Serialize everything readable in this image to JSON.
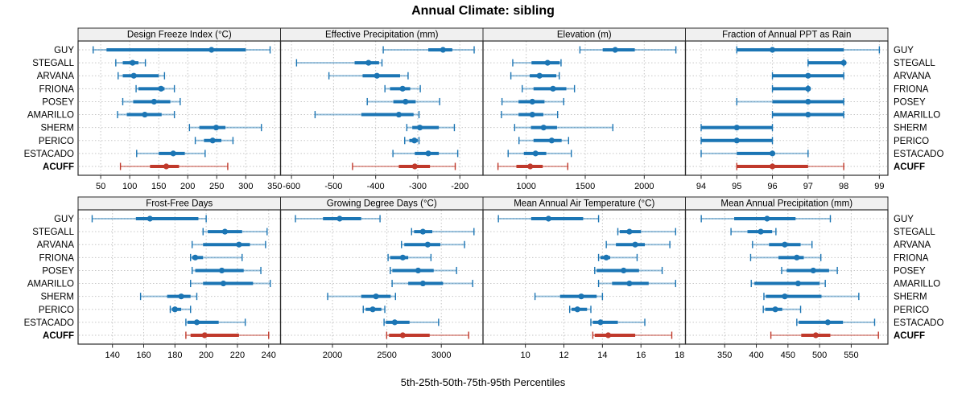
{
  "chart_data": {
    "type": "trellis-percentile-dotplot",
    "title": "Annual Climate: sibling",
    "footer": "5th-25th-50th-75th-95th Percentiles",
    "percentile_labels": [
      "5th",
      "25th",
      "50th",
      "75th",
      "95th"
    ],
    "stations": [
      "GUY",
      "STEGALL",
      "ARVANA",
      "FRIONA",
      "POSEY",
      "AMARILLO",
      "SHERM",
      "PERICO",
      "ESTACADO",
      "ACUFF"
    ],
    "highlight_station": "ACUFF",
    "colors": {
      "series": "#1b75b4",
      "highlight": "#c0392b",
      "grid": "#c6c6c6",
      "header_bg": "#f0f0f0",
      "border": "#2b2b2b"
    },
    "legend_position": "none",
    "grid": "dotted",
    "panels": [
      {
        "title": "Design Freeze Index (°C)",
        "row": 0,
        "col": 0,
        "xlim": [
          11,
          360
        ],
        "ticks": [
          50,
          100,
          150,
          200,
          250,
          300,
          350
        ],
        "values": [
          [
            37,
            60,
            241,
            300,
            342
          ],
          [
            76,
            88,
            105,
            115,
            127
          ],
          [
            80,
            88,
            107,
            150,
            160
          ],
          [
            111,
            115,
            154,
            160,
            177
          ],
          [
            88,
            106,
            142,
            170,
            187
          ],
          [
            79,
            95,
            126,
            155,
            177
          ],
          [
            203,
            220,
            249,
            265,
            327
          ],
          [
            213,
            228,
            243,
            258,
            278
          ],
          [
            112,
            150,
            175,
            195,
            230
          ],
          [
            84,
            135,
            163,
            185,
            269
          ]
        ]
      },
      {
        "title": "Effective Precipitation (mm)",
        "row": 0,
        "col": 1,
        "xlim": [
          -626,
          -145
        ],
        "ticks": [
          -600,
          -500,
          -400,
          -300,
          -200
        ],
        "values": [
          [
            -382,
            -275,
            -240,
            -218,
            -166
          ],
          [
            -588,
            -450,
            -417,
            -392,
            -385
          ],
          [
            -511,
            -431,
            -397,
            -342,
            -323
          ],
          [
            -378,
            -366,
            -336,
            -318,
            -294
          ],
          [
            -420,
            -358,
            -329,
            -305,
            -248
          ],
          [
            -544,
            -434,
            -345,
            -310,
            -297
          ],
          [
            -326,
            -313,
            -295,
            -250,
            -213
          ],
          [
            -331,
            -320,
            -308,
            -300,
            -297
          ],
          [
            -359,
            -307,
            -275,
            -250,
            -205
          ],
          [
            -455,
            -345,
            -307,
            -271,
            -211
          ]
        ]
      },
      {
        "title": "Elevation (m)",
        "row": 0,
        "col": 2,
        "xlim": [
          634,
          2349
        ],
        "ticks": [
          1000,
          1500,
          2000
        ],
        "values": [
          [
            1455,
            1648,
            1754,
            1920,
            2268
          ],
          [
            886,
            1045,
            1181,
            1284,
            1295
          ],
          [
            870,
            1030,
            1113,
            1255,
            1280
          ],
          [
            966,
            1062,
            1227,
            1340,
            1409
          ],
          [
            795,
            935,
            1052,
            1155,
            1318
          ],
          [
            790,
            935,
            1052,
            1145,
            1266
          ],
          [
            902,
            1040,
            1147,
            1261,
            1734
          ],
          [
            939,
            1062,
            1216,
            1300,
            1359
          ],
          [
            847,
            980,
            1079,
            1170,
            1382
          ],
          [
            761,
            917,
            1034,
            1140,
            1352
          ]
        ]
      },
      {
        "title": "Fraction of Annual PPT as Rain",
        "row": 0,
        "col": 3,
        "xlim": [
          93.56,
          99.24
        ],
        "ticks": [
          94,
          95,
          96,
          97,
          98,
          99
        ],
        "values": [
          [
            95,
            95,
            96,
            98,
            99
          ],
          [
            97,
            97,
            98,
            98,
            98
          ],
          [
            96,
            96,
            97,
            98,
            98
          ],
          [
            96,
            96,
            97,
            97,
            97
          ],
          [
            95,
            96,
            97,
            98,
            98
          ],
          [
            96,
            96,
            97,
            98,
            98
          ],
          [
            94,
            94,
            95,
            96,
            96
          ],
          [
            94,
            94,
            95,
            96,
            96
          ],
          [
            94,
            95,
            96,
            96,
            97
          ],
          [
            95,
            95,
            96,
            97,
            98
          ]
        ]
      },
      {
        "title": "Frost-Free Days",
        "row": 1,
        "col": 0,
        "xlim": [
          118,
          247.6
        ],
        "ticks": [
          140,
          160,
          180,
          200,
          220,
          240
        ],
        "values": [
          [
            127,
            155,
            164,
            195,
            200
          ],
          [
            198,
            201,
            212,
            223,
            239
          ],
          [
            191,
            198,
            221,
            228,
            238
          ],
          [
            190,
            191,
            193,
            198,
            223
          ],
          [
            191,
            193,
            210,
            224,
            235
          ],
          [
            190,
            198,
            211,
            230,
            241
          ],
          [
            158,
            175,
            184,
            190,
            194
          ],
          [
            177,
            178,
            180,
            184,
            190
          ],
          [
            187,
            188,
            194,
            208,
            225
          ],
          [
            187,
            190,
            199,
            221,
            240
          ]
        ]
      },
      {
        "title": "Growing Degree Days (°C)",
        "row": 1,
        "col": 1,
        "xlim": [
          1523,
          3383
        ],
        "ticks": [
          2000,
          2500,
          3000
        ],
        "values": [
          [
            1660,
            1913,
            2066,
            2264,
            2437
          ],
          [
            2727,
            2750,
            2831,
            2917,
            3300
          ],
          [
            2634,
            2660,
            2875,
            2991,
            3213
          ],
          [
            2511,
            2530,
            2646,
            2696,
            2905
          ],
          [
            2531,
            2550,
            2787,
            2930,
            3140
          ],
          [
            2548,
            2696,
            2831,
            3016,
            3288
          ],
          [
            1956,
            2264,
            2400,
            2535,
            2579
          ],
          [
            2283,
            2305,
            2370,
            2449,
            2481
          ],
          [
            2474,
            2490,
            2572,
            2708,
            2975
          ],
          [
            2498,
            2520,
            2646,
            2893,
            3251
          ]
        ]
      },
      {
        "title": "Mean Annual Air Temperature (°C)",
        "row": 1,
        "col": 2,
        "xlim": [
          7.8,
          18.31
        ],
        "ticks": [
          10,
          12,
          14,
          16,
          18
        ],
        "values": [
          [
            8.6,
            10.3,
            11.2,
            13.0,
            13.8
          ],
          [
            14.8,
            14.9,
            15.4,
            16.0,
            17.8
          ],
          [
            14.2,
            14.7,
            15.7,
            16.2,
            17.5
          ],
          [
            13.8,
            13.9,
            14.2,
            14.4,
            15.8
          ],
          [
            13.6,
            13.7,
            15.1,
            15.9,
            17.1
          ],
          [
            13.8,
            14.5,
            15.4,
            16.4,
            17.8
          ],
          [
            10.5,
            11.8,
            12.9,
            13.7,
            14.0
          ],
          [
            12.3,
            12.4,
            12.7,
            13.2,
            13.4
          ],
          [
            13.4,
            13.5,
            13.9,
            14.8,
            16.2
          ],
          [
            13.5,
            13.6,
            14.3,
            15.7,
            17.6
          ]
        ]
      },
      {
        "title": "Mean Annual Precipitation (mm)",
        "row": 1,
        "col": 3,
        "xlim": [
          288,
          608
        ],
        "ticks": [
          350,
          400,
          450,
          500,
          550
        ],
        "values": [
          [
            313,
            365,
            417,
            462,
            517
          ],
          [
            360,
            386,
            407,
            425,
            431
          ],
          [
            394,
            420,
            445,
            470,
            488
          ],
          [
            391,
            435,
            464,
            475,
            502
          ],
          [
            440,
            448,
            490,
            515,
            528
          ],
          [
            392,
            397,
            466,
            500,
            509
          ],
          [
            412,
            415,
            445,
            503,
            562
          ],
          [
            411,
            414,
            430,
            441,
            470
          ],
          [
            464,
            467,
            513,
            537,
            587
          ],
          [
            423,
            471,
            494,
            517,
            593
          ]
        ]
      }
    ]
  }
}
